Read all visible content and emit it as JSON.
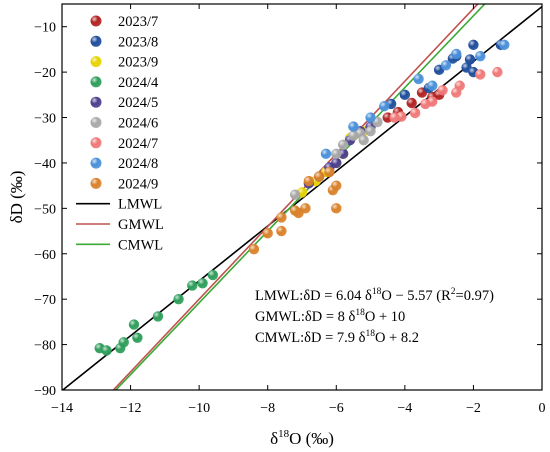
{
  "chart_data": {
    "type": "scatter",
    "xlabel_main": "δ",
    "xlabel_sup": "18",
    "xlabel_rest": "O (‰)",
    "ylabel": "δD (‰)",
    "xlim": [
      -14,
      0
    ],
    "ylim": [
      -90,
      -5
    ],
    "x_ticks": [
      -14,
      -12,
      -10,
      -8,
      -6,
      -4,
      -2,
      0
    ],
    "y_ticks": [
      -90,
      -80,
      -70,
      -60,
      -50,
      -40,
      -30,
      -20,
      -10
    ],
    "x_tick_labels": [
      "−14",
      "−12",
      "−10",
      "−8",
      "−6",
      "−4",
      "−2",
      "0"
    ],
    "y_tick_labels": [
      "−90",
      "−80",
      "−70",
      "−60",
      "−50",
      "−40",
      "−30",
      "−20",
      "−10"
    ],
    "legend_position": "top-left",
    "series": [
      {
        "name": "2023/7",
        "color": "#b22222",
        "points": [
          [
            -3.5,
            -24.5
          ],
          [
            -3.2,
            -25.5
          ],
          [
            -3.0,
            -25.0
          ],
          [
            -3.8,
            -26.8
          ],
          [
            -4.2,
            -28.8
          ],
          [
            -4.5,
            -30.0
          ]
        ]
      },
      {
        "name": "2023/8",
        "color": "#1f4e9c",
        "points": [
          [
            -1.2,
            -14.0
          ],
          [
            -2.0,
            -14.0
          ],
          [
            -2.5,
            -16.5
          ],
          [
            -2.6,
            -17.0
          ],
          [
            -2.1,
            -17.2
          ],
          [
            -2.2,
            -19.0
          ],
          [
            -3.0,
            -19.5
          ],
          [
            -2.0,
            -20.0
          ],
          [
            -3.3,
            -23.5
          ],
          [
            -4.0,
            -25.0
          ],
          [
            -4.4,
            -27.0
          ]
        ]
      },
      {
        "name": "2023/9",
        "color": "#e6d200",
        "points": [
          [
            -5.4,
            -33.5
          ],
          [
            -5.6,
            -34.5
          ],
          [
            -5.2,
            -33.0
          ],
          [
            -6.0,
            -40.0
          ],
          [
            -6.3,
            -42.0
          ],
          [
            -6.6,
            -44.0
          ],
          [
            -7.0,
            -46.5
          ],
          [
            -5.8,
            -38.0
          ]
        ]
      },
      {
        "name": "2024/4",
        "color": "#2e9e5b",
        "points": [
          [
            -12.9,
            -80.8
          ],
          [
            -12.7,
            -81.3
          ],
          [
            -12.3,
            -80.8
          ],
          [
            -12.2,
            -79.5
          ],
          [
            -11.8,
            -78.5
          ],
          [
            -11.9,
            -75.6
          ],
          [
            -11.2,
            -73.8
          ],
          [
            -10.6,
            -70.0
          ],
          [
            -10.2,
            -67.0
          ],
          [
            -9.9,
            -66.5
          ],
          [
            -9.6,
            -64.7
          ]
        ]
      },
      {
        "name": "2024/5",
        "color": "#4b3f8f",
        "points": [
          [
            -5.6,
            -35.0
          ],
          [
            -5.8,
            -38.0
          ],
          [
            -6.0,
            -40.0
          ],
          [
            -6.2,
            -41.0
          ],
          [
            -6.5,
            -43.0
          ],
          [
            -6.8,
            -44.5
          ],
          [
            -5.0,
            -32.0
          ],
          [
            -5.3,
            -33.0
          ]
        ]
      },
      {
        "name": "2024/6",
        "color": "#a8a8a8",
        "points": [
          [
            -5.0,
            -33.0
          ],
          [
            -5.3,
            -33.5
          ],
          [
            -5.5,
            -34.0
          ],
          [
            -5.8,
            -36.0
          ],
          [
            -6.0,
            -38.0
          ],
          [
            -5.2,
            -35.0
          ],
          [
            -4.8,
            -31.0
          ],
          [
            -7.2,
            -47.0
          ]
        ]
      },
      {
        "name": "2024/7",
        "color": "#f07878",
        "points": [
          [
            -1.3,
            -20.0
          ],
          [
            -1.8,
            -20.5
          ],
          [
            -2.4,
            -23.0
          ],
          [
            -2.5,
            -24.5
          ],
          [
            -2.9,
            -24.0
          ],
          [
            -3.2,
            -26.5
          ],
          [
            -3.4,
            -27.0
          ],
          [
            -3.7,
            -29.0
          ],
          [
            -4.1,
            -29.8
          ],
          [
            -4.3,
            -30.0
          ]
        ]
      },
      {
        "name": "2024/8",
        "color": "#4a90d9",
        "points": [
          [
            -1.1,
            -14.0
          ],
          [
            -1.8,
            -16.5
          ],
          [
            -2.5,
            -16.0
          ],
          [
            -2.8,
            -18.5
          ],
          [
            -3.6,
            -21.5
          ],
          [
            -3.2,
            -23.0
          ],
          [
            -4.6,
            -27.5
          ],
          [
            -5.0,
            -30.0
          ],
          [
            -5.5,
            -32.0
          ],
          [
            -6.3,
            -38.0
          ]
        ]
      },
      {
        "name": "2024/9",
        "color": "#d9822b",
        "points": [
          [
            -8.4,
            -59.0
          ],
          [
            -8.0,
            -55.5
          ],
          [
            -7.6,
            -55.0
          ],
          [
            -7.6,
            -52.0
          ],
          [
            -7.1,
            -51.0
          ],
          [
            -7.2,
            -50.5
          ],
          [
            -6.9,
            -50.0
          ],
          [
            -6.0,
            -50.0
          ],
          [
            -6.1,
            -46.0
          ],
          [
            -6.0,
            -45.0
          ],
          [
            -6.5,
            -43.0
          ],
          [
            -6.2,
            -42.0
          ],
          [
            -6.8,
            -44.0
          ]
        ]
      }
    ],
    "lines": [
      {
        "name": "LMWL",
        "color": "#000000",
        "slope": 6.04,
        "intercept": -5.57
      },
      {
        "name": "GMWL",
        "color": "#c0504d",
        "slope": 8,
        "intercept": 10
      },
      {
        "name": "CMWL",
        "color": "#3aaa35",
        "slope": 7.9,
        "intercept": 8.2
      }
    ],
    "equations": [
      {
        "pre": "LMWL:δD = 6.04 δ",
        "sup": "18",
        "mid": "O − 5.57  (R",
        "sup2": "2",
        "post": "=0.97)"
      },
      {
        "pre": "GMWL:δD = 8 δ",
        "sup": "18",
        "mid": "O + 10",
        "sup2": "",
        "post": ""
      },
      {
        "pre": "CMWL:δD = 7.9 δ",
        "sup": "18",
        "mid": "O + 8.2",
        "sup2": "",
        "post": ""
      }
    ]
  }
}
